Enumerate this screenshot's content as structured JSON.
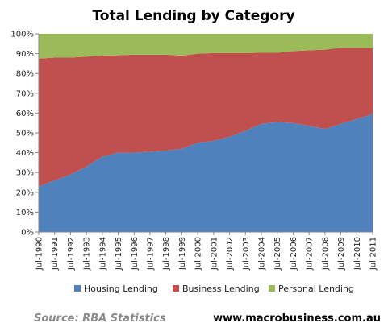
{
  "chart_data": {
    "type": "area",
    "stacked": true,
    "percent": true,
    "title": "Total Lending by Category",
    "xlabel": "",
    "ylabel": "",
    "ylim": [
      0,
      100
    ],
    "y_ticks": [
      "0%",
      "10%",
      "20%",
      "30%",
      "40%",
      "50%",
      "60%",
      "70%",
      "80%",
      "90%",
      "100%"
    ],
    "x": [
      1990.5,
      1991.5,
      1992.5,
      1993.5,
      1994.5,
      1995.5,
      1996.5,
      1997.5,
      1998.5,
      1999.5,
      2000.5,
      2001.5,
      2002.5,
      2003.5,
      2004.5,
      2005.5,
      2006.5,
      2007.5,
      2008.5,
      2009.5,
      2010.5,
      2011.5
    ],
    "x_ticks": [
      "Jul-1990",
      "Jul-1991",
      "Jul-1992",
      "Jul-1993",
      "Jul-1994",
      "Jul-1995",
      "Jul-1996",
      "Jul-1997",
      "Jul-1998",
      "Jul-1999",
      "Jul-2000",
      "Jul-2001",
      "Jul-2002",
      "Jul-2003",
      "Jul-2004",
      "Jul-2005",
      "Jul-2006",
      "Jul-2007",
      "Jul-2008",
      "Jul-2009",
      "Jul-2010",
      "Jul-2011"
    ],
    "series": [
      {
        "name": "Housing Lending",
        "color": "#4f81bd",
        "values": [
          23,
          26,
          29,
          33,
          38,
          40,
          40,
          40.5,
          41,
          42,
          45,
          46,
          48,
          51,
          54.5,
          55.5,
          55,
          53.5,
          52,
          54.5,
          57,
          59.5
        ]
      },
      {
        "name": "Business Lending",
        "color": "#c0504d",
        "values": [
          64.5,
          62,
          59,
          55.5,
          51,
          49.2,
          49.5,
          49,
          48.5,
          47,
          45,
          44.3,
          42.3,
          39.3,
          36,
          35,
          36.3,
          38.2,
          40,
          38.5,
          36,
          33.3
        ]
      },
      {
        "name": "Personal Lending",
        "color": "#9bbb59",
        "values": [
          12.5,
          12,
          12,
          11.5,
          11,
          10.8,
          10.5,
          10.5,
          10.5,
          11,
          10,
          9.7,
          9.7,
          9.7,
          9.5,
          9.5,
          8.7,
          8.3,
          8,
          7,
          7,
          7.2
        ]
      }
    ],
    "legend_position": "bottom",
    "grid": false
  },
  "footer": {
    "source": "Source:  RBA Statistics",
    "website": "www.macrobusiness.com.au"
  }
}
